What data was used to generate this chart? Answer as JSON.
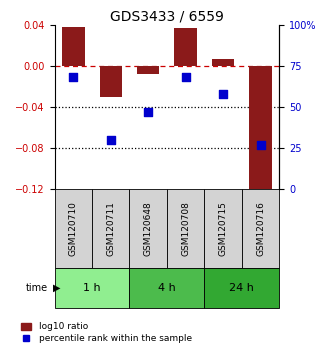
{
  "title": "GDS3433 / 6559",
  "samples": [
    "GSM120710",
    "GSM120711",
    "GSM120648",
    "GSM120708",
    "GSM120715",
    "GSM120716"
  ],
  "log10_ratio": [
    0.038,
    -0.03,
    -0.008,
    0.037,
    0.007,
    -0.125
  ],
  "percentile_rank": [
    68,
    30,
    47,
    68,
    58,
    27
  ],
  "ylim_left": [
    -0.12,
    0.04
  ],
  "ylim_right": [
    0,
    100
  ],
  "yticks_left": [
    0.04,
    0.0,
    -0.04,
    -0.08,
    -0.12
  ],
  "yticks_right": [
    100,
    75,
    50,
    25,
    0
  ],
  "ytick_labels_right": [
    "100%",
    "75",
    "50",
    "25",
    "0"
  ],
  "hlines_dotted": [
    -0.04,
    -0.08
  ],
  "hline_dashed": 0.0,
  "bar_color": "#8B1A1A",
  "dot_color": "#0000CD",
  "time_groups": [
    {
      "label": "1 h",
      "start": 0,
      "end": 2,
      "color": "#90EE90"
    },
    {
      "label": "4 h",
      "start": 2,
      "end": 4,
      "color": "#4CBB4C"
    },
    {
      "label": "24 h",
      "start": 4,
      "end": 6,
      "color": "#32A832"
    }
  ],
  "legend_bar_label": "log10 ratio",
  "legend_dot_label": "percentile rank within the sample",
  "bar_width": 0.6,
  "left_tick_color": "#CC0000",
  "right_tick_color": "#0000CD",
  "title_fontsize": 10,
  "tick_fontsize": 7,
  "sample_label_fontsize": 6.5,
  "time_fontsize": 8
}
